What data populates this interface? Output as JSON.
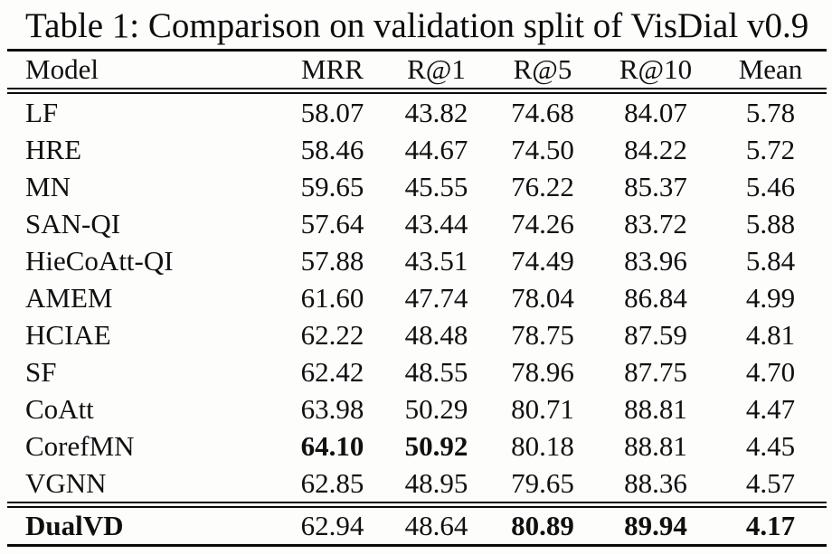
{
  "colors": {
    "background": "#fdfdfc",
    "text": "#101010",
    "rule": "#0a0a0a"
  },
  "caption": "Table 1: Comparison on validation split of VisDial v0.9",
  "table": {
    "columns": [
      "Model",
      "MRR",
      "R@1",
      "R@5",
      "R@10",
      "Mean"
    ],
    "rows": [
      {
        "cells": [
          "LF",
          "58.07",
          "43.82",
          "74.68",
          "84.07",
          "5.78"
        ],
        "bold": [],
        "footer": false
      },
      {
        "cells": [
          "HRE",
          "58.46",
          "44.67",
          "74.50",
          "84.22",
          "5.72"
        ],
        "bold": [],
        "footer": false
      },
      {
        "cells": [
          "MN",
          "59.65",
          "45.55",
          "76.22",
          "85.37",
          "5.46"
        ],
        "bold": [],
        "footer": false
      },
      {
        "cells": [
          "SAN-QI",
          "57.64",
          "43.44",
          "74.26",
          "83.72",
          "5.88"
        ],
        "bold": [],
        "footer": false
      },
      {
        "cells": [
          "HieCoAtt-QI",
          "57.88",
          "43.51",
          "74.49",
          "83.96",
          "5.84"
        ],
        "bold": [],
        "footer": false
      },
      {
        "cells": [
          "AMEM",
          "61.60",
          "47.74",
          "78.04",
          "86.84",
          "4.99"
        ],
        "bold": [],
        "footer": false
      },
      {
        "cells": [
          "HCIAE",
          "62.22",
          "48.48",
          "78.75",
          "87.59",
          "4.81"
        ],
        "bold": [],
        "footer": false
      },
      {
        "cells": [
          "SF",
          "62.42",
          "48.55",
          "78.96",
          "87.75",
          "4.70"
        ],
        "bold": [],
        "footer": false
      },
      {
        "cells": [
          "CoAtt",
          "63.98",
          "50.29",
          "80.71",
          "88.81",
          "4.47"
        ],
        "bold": [],
        "footer": false
      },
      {
        "cells": [
          "CorefMN",
          "64.10",
          "50.92",
          "80.18",
          "88.81",
          "4.45"
        ],
        "bold": [
          1,
          2
        ],
        "footer": false
      },
      {
        "cells": [
          "VGNN",
          "62.85",
          "48.95",
          "79.65",
          "88.36",
          "4.57"
        ],
        "bold": [],
        "footer": false
      },
      {
        "cells": [
          "DualVD",
          "62.94",
          "48.64",
          "80.89",
          "89.94",
          "4.17"
        ],
        "bold": [
          0,
          3,
          4,
          5
        ],
        "footer": true
      }
    ]
  }
}
